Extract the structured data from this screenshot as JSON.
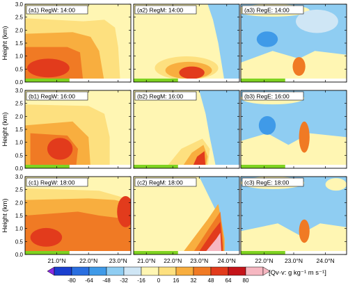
{
  "chart_data": {
    "type": "heatmap",
    "panels": [
      {
        "id": "a1",
        "label": "(a1) RegW: 14:00",
        "region": "RegW",
        "time": "14:00"
      },
      {
        "id": "a2",
        "label": "(a2) RegM: 14:00",
        "region": "RegM",
        "time": "14:00"
      },
      {
        "id": "a3",
        "label": "(a3) RegE: 14:00",
        "region": "RegE",
        "time": "14:00"
      },
      {
        "id": "b1",
        "label": "(b1) RegW: 16:00",
        "region": "RegW",
        "time": "16:00"
      },
      {
        "id": "b2",
        "label": "(b2) RegM: 16:00",
        "region": "RegM",
        "time": "16:00"
      },
      {
        "id": "b3",
        "label": "(b3) RegE: 16:00",
        "region": "RegE",
        "time": "16:00"
      },
      {
        "id": "c1",
        "label": "(c1) RegW: 18:00",
        "region": "RegW",
        "time": "18:00"
      },
      {
        "id": "c2",
        "label": "(c2) RegM: 18:00",
        "region": "RegM",
        "time": "18:00"
      },
      {
        "id": "c3",
        "label": "(c3) RegE: 18:00",
        "region": "RegE",
        "time": "18:00"
      }
    ],
    "ylabel": "Height (km)",
    "yticks": [
      "0.0",
      "0.5",
      "1.0",
      "1.5",
      "2.0",
      "2.5",
      "3.0"
    ],
    "ylim": [
      0,
      3
    ],
    "xtick_sets": [
      [
        "21.0°N",
        "22.0°N",
        "23.0°N"
      ],
      [
        "21.0°N",
        "22.0°N",
        "23.0°N",
        "24.0°N"
      ],
      [
        "22.0°N",
        "23.0°N",
        "24.0°N"
      ]
    ],
    "colorbar": {
      "label": "[Qv·v: g kg⁻¹ m s⁻¹]",
      "ticks": [
        "-80",
        "-64",
        "-48",
        "-32",
        "-16",
        "0",
        "16",
        "32",
        "48",
        "64",
        "80"
      ],
      "colors": [
        "#8a2be2",
        "#1a3fcf",
        "#2a6fe0",
        "#3f9ae8",
        "#8fcdf2",
        "#cfe6f5",
        "#fff6b3",
        "#fde07f",
        "#f8ae3f",
        "#f07a24",
        "#e23b1c",
        "#c5141a",
        "#f6b7c1"
      ]
    }
  }
}
